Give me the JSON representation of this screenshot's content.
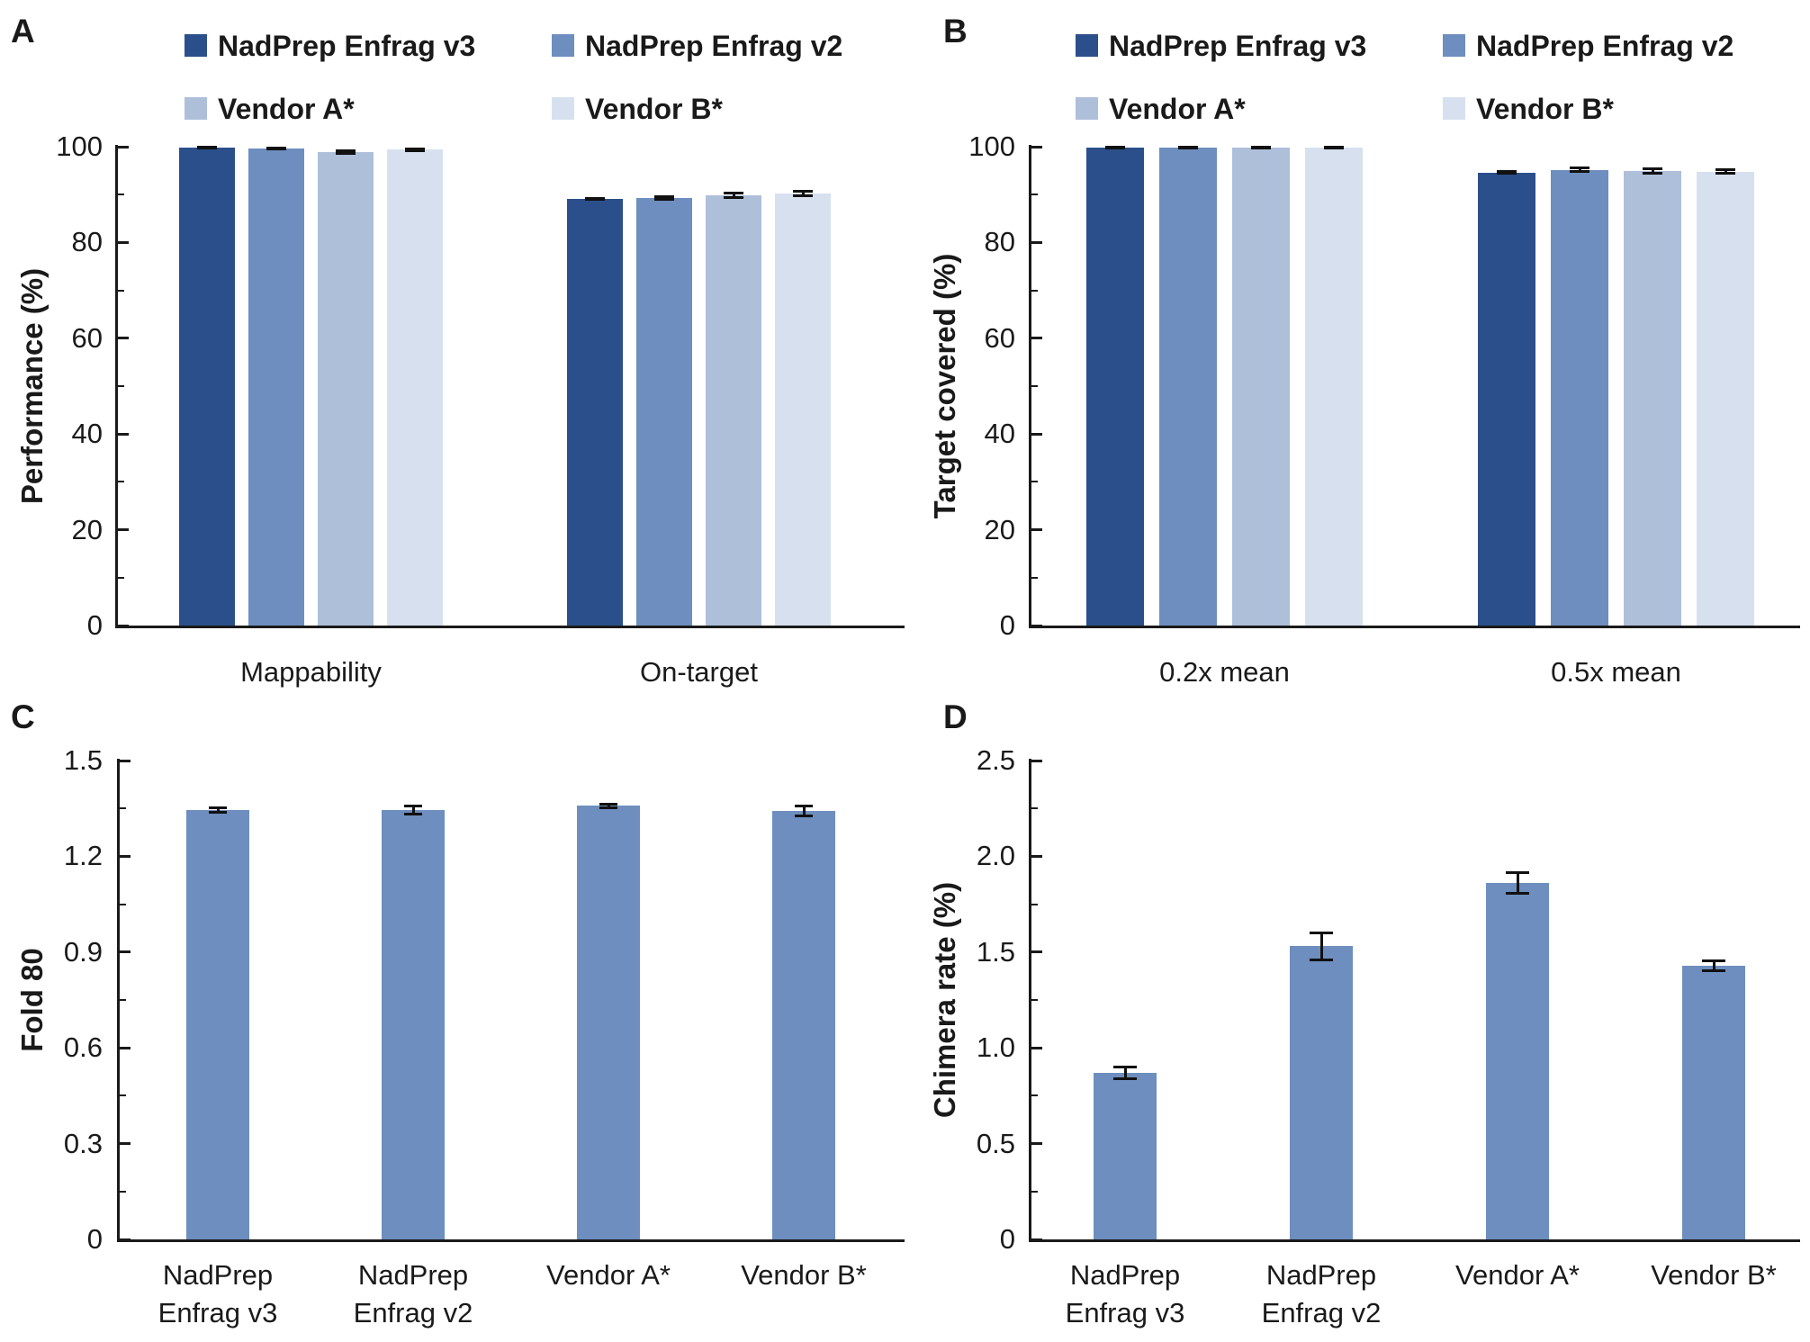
{
  "colors": {
    "series": [
      "#2B4F8B",
      "#6D8EBF",
      "#AEBFDA",
      "#D7E0EE"
    ],
    "single_bar": "#6D8EBF",
    "axis": "#1a1a1a",
    "error_bar": "#111111",
    "text": "#1a1a1a",
    "background": "#ffffff"
  },
  "legend": {
    "items": [
      "NadPrep Enfrag v3",
      "NadPrep Enfrag v2",
      "Vendor A*",
      "Vendor B*"
    ]
  },
  "chart_data": [
    {
      "id": "A",
      "panel_label": "A",
      "type": "bar",
      "title": "",
      "xlabel": "",
      "ylabel": "Performance (%)",
      "ylim": [
        0,
        100
      ],
      "ytick_step": 20,
      "yminor_step": 10,
      "ytick_decimals": 0,
      "grid": false,
      "legend_position": "top",
      "categories": [
        "Mappability",
        "On-target"
      ],
      "series": [
        {
          "name": "NadPrep Enfrag v3",
          "values": [
            99.8,
            89.1
          ],
          "errors": [
            0.1,
            0.15
          ]
        },
        {
          "name": "NadPrep Enfrag v2",
          "values": [
            99.6,
            89.3
          ],
          "errors": [
            0.15,
            0.3
          ]
        },
        {
          "name": "Vendor A*",
          "values": [
            98.9,
            89.9
          ],
          "errors": [
            0.25,
            0.5
          ]
        },
        {
          "name": "Vendor B*",
          "values": [
            99.4,
            90.2
          ],
          "errors": [
            0.2,
            0.45
          ]
        }
      ]
    },
    {
      "id": "B",
      "panel_label": "B",
      "type": "bar",
      "title": "",
      "xlabel": "",
      "ylabel": "Target covered (%)",
      "ylim": [
        0,
        100
      ],
      "ytick_step": 20,
      "yminor_step": 10,
      "ytick_decimals": 0,
      "grid": false,
      "legend_position": "top",
      "categories": [
        "0.2x mean",
        "0.5x mean"
      ],
      "series": [
        {
          "name": "NadPrep Enfrag v3",
          "values": [
            99.8,
            94.6
          ],
          "errors": [
            0.05,
            0.2
          ]
        },
        {
          "name": "NadPrep Enfrag v2",
          "values": [
            99.8,
            95.2
          ],
          "errors": [
            0.1,
            0.35
          ]
        },
        {
          "name": "Vendor A*",
          "values": [
            99.9,
            94.9
          ],
          "errors": [
            0.1,
            0.5
          ]
        },
        {
          "name": "Vendor B*",
          "values": [
            99.9,
            94.8
          ],
          "errors": [
            0.1,
            0.35
          ]
        }
      ]
    },
    {
      "id": "C",
      "panel_label": "C",
      "type": "bar",
      "title": "",
      "xlabel": "",
      "ylabel": "Fold 80",
      "ylim": [
        0,
        1.5
      ],
      "ytick_step": 0.3,
      "yminor_step": 0.15,
      "ytick_decimals": 1,
      "grid": false,
      "legend_position": "none",
      "categories": [
        [
          "NadPrep",
          "Enfrag v3"
        ],
        [
          "NadPrep",
          "Enfrag v2"
        ],
        [
          "Vendor A*"
        ],
        [
          "Vendor B*"
        ]
      ],
      "values": [
        1.345,
        1.345,
        1.358,
        1.342
      ],
      "errors": [
        0.008,
        0.012,
        0.005,
        0.015
      ]
    },
    {
      "id": "D",
      "panel_label": "D",
      "type": "bar",
      "title": "",
      "xlabel": "",
      "ylabel": "Chimera rate (%)",
      "ylim": [
        0,
        2.5
      ],
      "ytick_step": 0.5,
      "yminor_step": 0.25,
      "ytick_decimals": 1,
      "grid": false,
      "legend_position": "none",
      "categories": [
        [
          "NadPrep",
          "Enfrag v3"
        ],
        [
          "NadPrep",
          "Enfrag v2"
        ],
        [
          "Vendor A*"
        ],
        [
          "Vendor B*"
        ]
      ],
      "values": [
        0.87,
        1.53,
        1.86,
        1.43
      ],
      "errors": [
        0.03,
        0.07,
        0.055,
        0.025
      ]
    }
  ]
}
